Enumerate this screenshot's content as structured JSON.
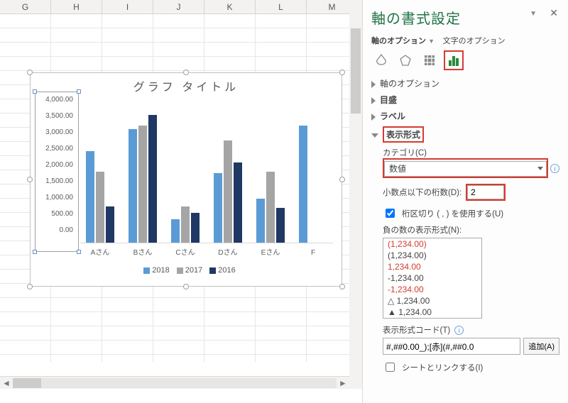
{
  "columns": [
    "G",
    "H",
    "I",
    "J",
    "K",
    "L",
    "M"
  ],
  "chart": {
    "title": "グラフ タイトル",
    "categories": [
      "Aさん",
      "Bさん",
      "Cさん",
      "Dさん",
      "Eさん",
      "F"
    ],
    "series": [
      {
        "name": "2018",
        "color": "#5b9bd5",
        "values": [
          2500,
          3100,
          650,
          1900,
          1200,
          3200
        ]
      },
      {
        "name": "2017",
        "color": "#a5a5a5",
        "values": [
          1950,
          3200,
          1000,
          2800,
          1950,
          0
        ]
      },
      {
        "name": "2016",
        "color": "#1f3864",
        "values": [
          1000,
          3500,
          820,
          2200,
          950,
          0
        ]
      }
    ],
    "ylabels": [
      "4,000.00",
      "3,500.00",
      "3,000.00",
      "2,500.00",
      "2,000.00",
      "1,500.00",
      "1,000.00",
      "500.00",
      "0.00"
    ],
    "ymax": 4000
  },
  "panel": {
    "title": "軸の書式設定",
    "tab_axis": "軸のオプション",
    "tab_text": "文字のオプション",
    "sec_axis_options": "軸のオプション",
    "sec_tick": "目盛",
    "sec_label": "ラベル",
    "sec_format": "表示形式",
    "category_label": "カテゴリ(C)",
    "category_value": "数値",
    "decimals_label": "小数点以下の桁数(D):",
    "decimals_value": "2",
    "thousands_label": "桁区切り ( , ) を使用する(U)",
    "thousands_checked": true,
    "neg_label": "負の数の表示形式(N):",
    "neg_options": [
      {
        "text": "(1,234.00)",
        "color": "#d53b2f"
      },
      {
        "text": "(1,234.00)",
        "color": "#444"
      },
      {
        "text": "1,234.00",
        "color": "#d53b2f"
      },
      {
        "text": "-1,234.00",
        "color": "#444"
      },
      {
        "text": "-1,234.00",
        "color": "#d53b2f"
      },
      {
        "text": "△ 1,234.00",
        "color": "#444"
      },
      {
        "text": "▲ 1,234.00",
        "color": "#444"
      }
    ],
    "code_label": "表示形式コード(T)",
    "code_value": "#,##0.00_);[赤](#,##0.0",
    "add_btn": "追加(A)",
    "link_label": "シートとリンクする(I)",
    "link_checked": false
  }
}
